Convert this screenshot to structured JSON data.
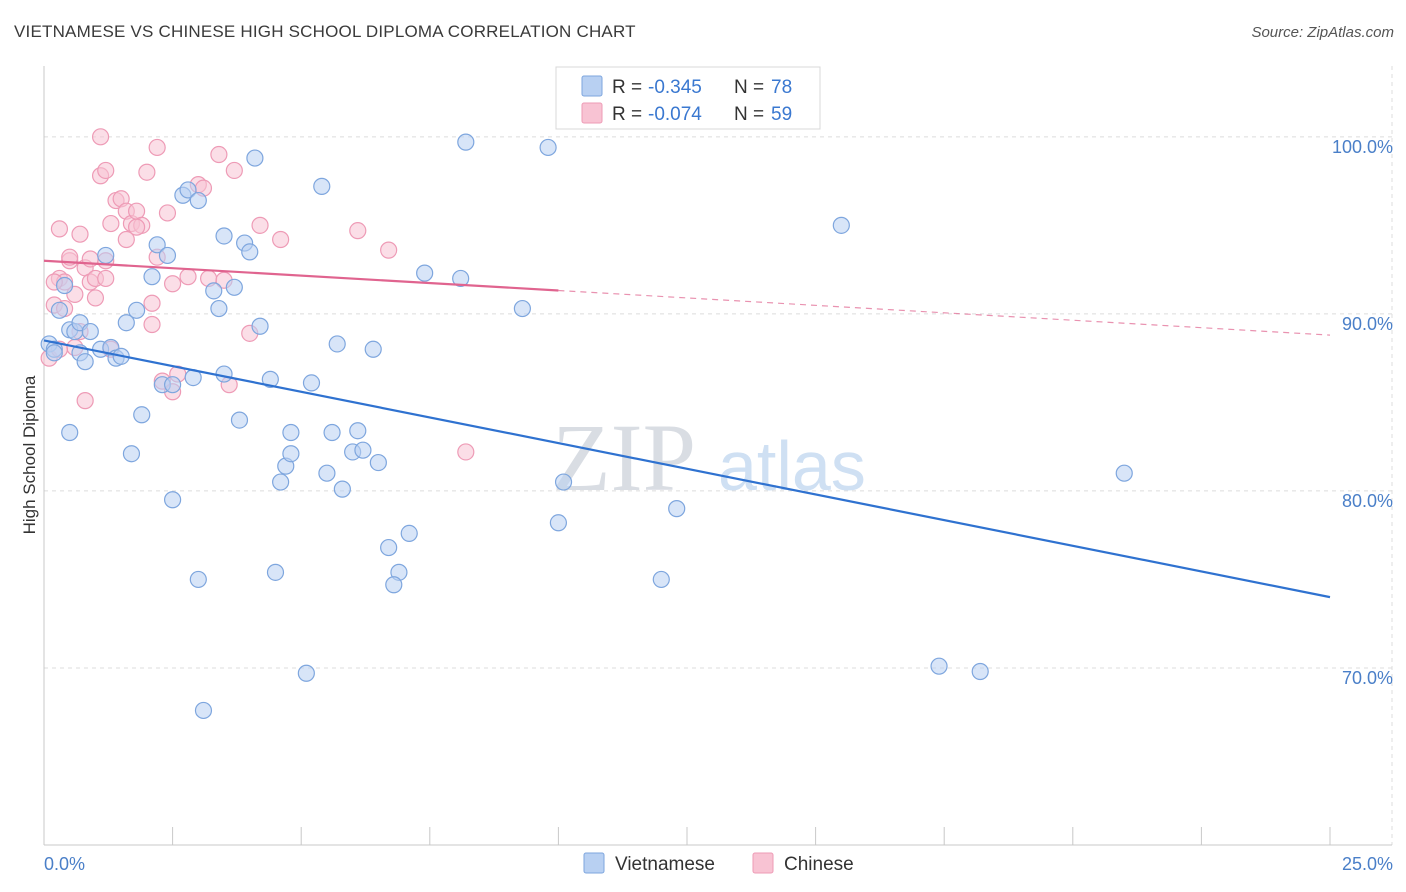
{
  "title": "VIETNAMESE VS CHINESE HIGH SCHOOL DIPLOMA CORRELATION CHART",
  "source": "Source: ZipAtlas.com",
  "colors": {
    "vietnamese_fill": "#b8d0f2",
    "vietnamese_stroke": "#7ea6de",
    "vietnamese_line": "#2f72d0",
    "chinese_fill": "#f8c3d3",
    "chinese_stroke": "#ee9bb6",
    "chinese_line": "#e0648f"
  },
  "legend": {
    "rows": [
      {
        "r_label": "R =",
        "r_value": "-0.345",
        "n_label": "N =",
        "n_value": "78"
      },
      {
        "r_label": "R =",
        "r_value": "-0.074",
        "n_label": "N =",
        "n_value": "59"
      }
    ]
  },
  "watermark": {
    "zip": "ZIP",
    "atlas": "atlas"
  },
  "chart_data": {
    "type": "scatter",
    "xlabel": "",
    "ylabel": "High School Diploma",
    "xlim": [
      0,
      25
    ],
    "ylim": [
      60,
      104
    ],
    "x_tick_labels": [
      "0.0%",
      "25.0%"
    ],
    "y_ticks": [
      70,
      80,
      90,
      100
    ],
    "y_tick_labels": [
      "70.0%",
      "80.0%",
      "90.0%",
      "100.0%"
    ],
    "grid": true,
    "legend_position": "top-center",
    "bottom_legend": [
      "Vietnamese",
      "Chinese"
    ],
    "series": [
      {
        "name": "Vietnamese",
        "trend": {
          "x": [
            0.0,
            25.0
          ],
          "y": [
            88.5,
            74.0
          ],
          "solid_to": 25.0
        },
        "points": [
          [
            0.1,
            88.3
          ],
          [
            0.2,
            88.0
          ],
          [
            0.3,
            90.2
          ],
          [
            0.4,
            91.6
          ],
          [
            0.5,
            89.1
          ],
          [
            0.5,
            83.3
          ],
          [
            0.6,
            89.0
          ],
          [
            0.7,
            87.8
          ],
          [
            0.7,
            89.5
          ],
          [
            0.8,
            87.3
          ],
          [
            0.9,
            89.0
          ],
          [
            1.1,
            88.0
          ],
          [
            1.2,
            93.3
          ],
          [
            1.3,
            88.1
          ],
          [
            1.4,
            87.5
          ],
          [
            1.5,
            87.6
          ],
          [
            1.6,
            89.5
          ],
          [
            1.7,
            82.1
          ],
          [
            1.8,
            90.2
          ],
          [
            1.9,
            84.3
          ],
          [
            2.1,
            92.1
          ],
          [
            2.2,
            93.9
          ],
          [
            2.3,
            86.0
          ],
          [
            2.4,
            93.3
          ],
          [
            2.5,
            79.5
          ],
          [
            2.5,
            86.0
          ],
          [
            2.7,
            96.7
          ],
          [
            2.8,
            97.0
          ],
          [
            2.9,
            86.4
          ],
          [
            3.0,
            96.4
          ],
          [
            3.1,
            67.6
          ],
          [
            3.0,
            75.0
          ],
          [
            3.3,
            91.3
          ],
          [
            3.5,
            94.4
          ],
          [
            3.4,
            90.3
          ],
          [
            3.5,
            86.6
          ],
          [
            3.7,
            91.5
          ],
          [
            3.8,
            84.0
          ],
          [
            3.9,
            94.0
          ],
          [
            4.0,
            93.5
          ],
          [
            4.1,
            98.8
          ],
          [
            4.2,
            89.3
          ],
          [
            4.4,
            86.3
          ],
          [
            4.5,
            75.4
          ],
          [
            4.6,
            80.5
          ],
          [
            4.7,
            81.4
          ],
          [
            4.8,
            82.1
          ],
          [
            4.8,
            83.3
          ],
          [
            5.1,
            69.7
          ],
          [
            5.2,
            86.1
          ],
          [
            5.4,
            97.2
          ],
          [
            5.5,
            81.0
          ],
          [
            5.6,
            83.3
          ],
          [
            5.7,
            88.3
          ],
          [
            5.8,
            80.1
          ],
          [
            6.0,
            82.2
          ],
          [
            6.1,
            83.4
          ],
          [
            6.2,
            82.3
          ],
          [
            6.4,
            88.0
          ],
          [
            6.5,
            81.6
          ],
          [
            6.7,
            76.8
          ],
          [
            6.9,
            75.4
          ],
          [
            6.8,
            74.7
          ],
          [
            7.1,
            77.6
          ],
          [
            7.4,
            92.3
          ],
          [
            8.1,
            92.0
          ],
          [
            8.2,
            99.7
          ],
          [
            9.3,
            90.3
          ],
          [
            9.8,
            99.4
          ],
          [
            10.0,
            78.2
          ],
          [
            10.1,
            80.5
          ],
          [
            12.0,
            75.0
          ],
          [
            12.3,
            79.0
          ],
          [
            15.5,
            95.0
          ],
          [
            17.4,
            70.1
          ],
          [
            18.2,
            69.8
          ],
          [
            21.0,
            81.0
          ],
          [
            0.2,
            87.8
          ]
        ]
      },
      {
        "name": "Chinese",
        "trend": {
          "x": [
            0.0,
            25.0
          ],
          "y": [
            93.0,
            88.8
          ],
          "solid_to": 10.0
        },
        "points": [
          [
            0.1,
            87.5
          ],
          [
            0.2,
            90.5
          ],
          [
            0.3,
            92.0
          ],
          [
            0.3,
            94.8
          ],
          [
            0.4,
            91.8
          ],
          [
            0.5,
            93.0
          ],
          [
            0.6,
            91.1
          ],
          [
            0.6,
            88.1
          ],
          [
            0.7,
            94.5
          ],
          [
            0.8,
            92.6
          ],
          [
            0.8,
            85.1
          ],
          [
            0.9,
            91.8
          ],
          [
            1.0,
            90.9
          ],
          [
            1.0,
            92.0
          ],
          [
            1.1,
            97.8
          ],
          [
            1.1,
            100.0
          ],
          [
            1.2,
            93.0
          ],
          [
            1.2,
            98.1
          ],
          [
            1.3,
            88.0
          ],
          [
            1.4,
            96.4
          ],
          [
            1.5,
            96.5
          ],
          [
            1.6,
            95.8
          ],
          [
            1.7,
            95.1
          ],
          [
            1.8,
            95.8
          ],
          [
            1.9,
            95.0
          ],
          [
            2.0,
            98.0
          ],
          [
            2.1,
            89.4
          ],
          [
            2.1,
            90.6
          ],
          [
            2.2,
            99.4
          ],
          [
            2.3,
            86.2
          ],
          [
            2.4,
            95.7
          ],
          [
            2.5,
            91.7
          ],
          [
            2.5,
            85.6
          ],
          [
            2.6,
            86.6
          ],
          [
            2.8,
            92.1
          ],
          [
            3.0,
            97.3
          ],
          [
            3.1,
            97.1
          ],
          [
            3.2,
            92.0
          ],
          [
            3.4,
            99.0
          ],
          [
            3.5,
            91.9
          ],
          [
            3.6,
            86.0
          ],
          [
            3.7,
            98.1
          ],
          [
            4.0,
            88.9
          ],
          [
            4.2,
            95.0
          ],
          [
            4.6,
            94.2
          ],
          [
            6.1,
            94.7
          ],
          [
            6.7,
            93.6
          ],
          [
            8.2,
            82.2
          ],
          [
            0.2,
            91.8
          ],
          [
            0.4,
            90.3
          ],
          [
            0.7,
            89.0
          ],
          [
            0.9,
            93.1
          ],
          [
            1.3,
            95.1
          ],
          [
            1.6,
            94.2
          ],
          [
            1.8,
            94.9
          ],
          [
            2.2,
            93.2
          ],
          [
            0.3,
            88.0
          ],
          [
            0.5,
            93.2
          ],
          [
            1.2,
            92.0
          ]
        ]
      }
    ]
  }
}
